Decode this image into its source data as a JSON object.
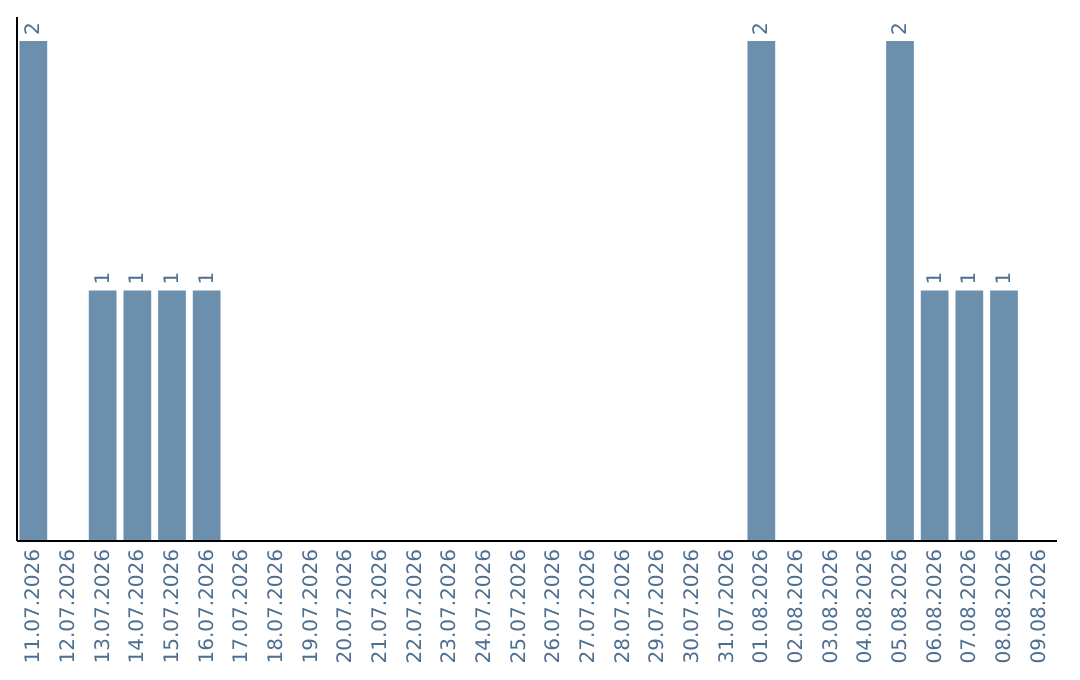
{
  "chart_data": {
    "type": "bar",
    "categories": [
      "11.07.2026",
      "12.07.2026",
      "13.07.2026",
      "14.07.2026",
      "15.07.2026",
      "16.07.2026",
      "17.07.2026",
      "18.07.2026",
      "19.07.2026",
      "20.07.2026",
      "21.07.2026",
      "22.07.2026",
      "23.07.2026",
      "24.07.2026",
      "25.07.2026",
      "26.07.2026",
      "27.07.2026",
      "28.07.2026",
      "29.07.2026",
      "30.07.2026",
      "31.07.2026",
      "01.08.2026",
      "02.08.2026",
      "03.08.2026",
      "04.08.2026",
      "05.08.2026",
      "06.08.2026",
      "07.08.2026",
      "08.08.2026",
      "09.08.2026"
    ],
    "values": [
      2,
      0,
      1,
      1,
      1,
      1,
      0,
      0,
      0,
      0,
      0,
      0,
      0,
      0,
      0,
      0,
      0,
      0,
      0,
      0,
      0,
      2,
      0,
      0,
      0,
      2,
      1,
      1,
      1,
      0
    ],
    "value_labels": [
      "2",
      null,
      "1",
      "1",
      "1",
      "1",
      null,
      null,
      null,
      null,
      null,
      null,
      null,
      null,
      null,
      null,
      null,
      null,
      null,
      null,
      null,
      "2",
      null,
      null,
      null,
      "2",
      "1",
      "1",
      "1",
      null
    ],
    "color": "#6d8fae",
    "tick_labels": "x",
    "grid": false
  }
}
